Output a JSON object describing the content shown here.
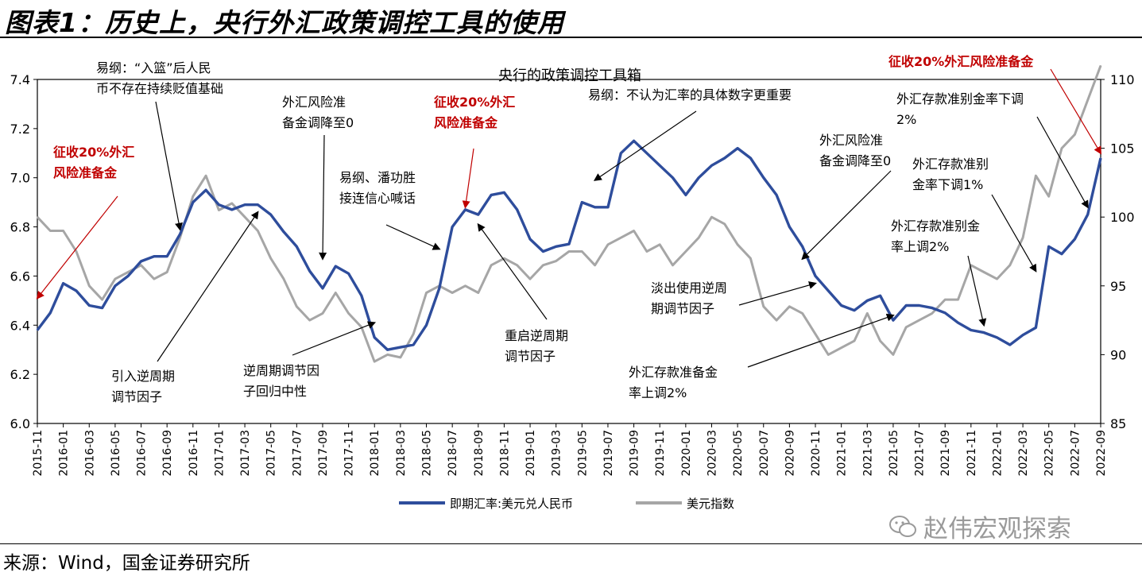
{
  "page": {
    "title": "图表1：历史上，央行外汇政策调控工具的使用",
    "source": "来源：Wind，国金证券研究所",
    "watermark": "赵伟宏观探索"
  },
  "chart_data": {
    "type": "line",
    "title": "央行的政策调控工具箱",
    "x_start": "2015-11",
    "x_end": "2022-09",
    "x_tick_labels": [
      "2015-11",
      "2016-01",
      "2016-03",
      "2016-05",
      "2016-07",
      "2016-09",
      "2016-11",
      "2017-01",
      "2017-03",
      "2017-05",
      "2017-07",
      "2017-09",
      "2017-11",
      "2018-01",
      "2018-03",
      "2018-05",
      "2018-07",
      "2018-09",
      "2018-11",
      "2019-01",
      "2019-03",
      "2019-05",
      "2019-07",
      "2019-09",
      "2019-11",
      "2020-01",
      "2020-03",
      "2020-05",
      "2020-07",
      "2020-09",
      "2020-11",
      "2021-01",
      "2021-03",
      "2021-05",
      "2021-07",
      "2021-09",
      "2021-11",
      "2022-01",
      "2022-03",
      "2022-05",
      "2022-07",
      "2022-09"
    ],
    "y_left": {
      "range": [
        6.0,
        7.4
      ],
      "ticks": [
        "6.0",
        "6.2",
        "6.4",
        "6.6",
        "6.8",
        "7.0",
        "7.2",
        "7.4"
      ]
    },
    "y_right": {
      "range": [
        85,
        110
      ],
      "ticks": [
        "85",
        "90",
        "95",
        "100",
        "105",
        "110"
      ]
    },
    "legend_position": "bottom",
    "colors": {
      "usdcny": "#2e4d9c",
      "dxy": "#a6a6a6",
      "highlight": "#c00000"
    },
    "series": [
      {
        "name": "即期汇率:美元兑人民币",
        "axis": "left",
        "x": [
          "2015-11",
          "2015-12",
          "2016-01",
          "2016-02",
          "2016-03",
          "2016-04",
          "2016-05",
          "2016-06",
          "2016-07",
          "2016-08",
          "2016-09",
          "2016-10",
          "2016-11",
          "2016-12",
          "2017-01",
          "2017-02",
          "2017-03",
          "2017-04",
          "2017-05",
          "2017-06",
          "2017-07",
          "2017-08",
          "2017-09",
          "2017-10",
          "2017-11",
          "2017-12",
          "2018-01",
          "2018-02",
          "2018-03",
          "2018-04",
          "2018-05",
          "2018-06",
          "2018-07",
          "2018-08",
          "2018-09",
          "2018-10",
          "2018-11",
          "2018-12",
          "2019-01",
          "2019-02",
          "2019-03",
          "2019-04",
          "2019-05",
          "2019-06",
          "2019-07",
          "2019-08",
          "2019-09",
          "2019-10",
          "2019-11",
          "2019-12",
          "2020-01",
          "2020-02",
          "2020-03",
          "2020-04",
          "2020-05",
          "2020-06",
          "2020-07",
          "2020-08",
          "2020-09",
          "2020-10",
          "2020-11",
          "2020-12",
          "2021-01",
          "2021-02",
          "2021-03",
          "2021-04",
          "2021-05",
          "2021-06",
          "2021-07",
          "2021-08",
          "2021-09",
          "2021-10",
          "2021-11",
          "2021-12",
          "2022-01",
          "2022-02",
          "2022-03",
          "2022-04",
          "2022-05",
          "2022-06",
          "2022-07",
          "2022-08",
          "2022-09"
        ],
        "values": [
          6.38,
          6.45,
          6.57,
          6.54,
          6.48,
          6.47,
          6.56,
          6.6,
          6.66,
          6.68,
          6.68,
          6.77,
          6.9,
          6.95,
          6.89,
          6.87,
          6.89,
          6.89,
          6.85,
          6.78,
          6.72,
          6.62,
          6.55,
          6.64,
          6.61,
          6.52,
          6.35,
          6.3,
          6.31,
          6.32,
          6.4,
          6.55,
          6.8,
          6.87,
          6.85,
          6.93,
          6.94,
          6.87,
          6.75,
          6.7,
          6.72,
          6.73,
          6.9,
          6.88,
          6.88,
          7.1,
          7.15,
          7.1,
          7.05,
          7.0,
          6.93,
          7.0,
          7.05,
          7.08,
          7.12,
          7.08,
          7.0,
          6.93,
          6.8,
          6.72,
          6.6,
          6.54,
          6.48,
          6.46,
          6.5,
          6.52,
          6.42,
          6.48,
          6.48,
          6.47,
          6.45,
          6.41,
          6.38,
          6.37,
          6.35,
          6.32,
          6.36,
          6.39,
          6.72,
          6.69,
          6.75,
          6.85,
          7.08
        ]
      },
      {
        "name": "美元指数",
        "axis": "right",
        "x": [
          "2015-11",
          "2015-12",
          "2016-01",
          "2016-02",
          "2016-03",
          "2016-04",
          "2016-05",
          "2016-06",
          "2016-07",
          "2016-08",
          "2016-09",
          "2016-10",
          "2016-11",
          "2016-12",
          "2017-01",
          "2017-02",
          "2017-03",
          "2017-04",
          "2017-05",
          "2017-06",
          "2017-07",
          "2017-08",
          "2017-09",
          "2017-10",
          "2017-11",
          "2017-12",
          "2018-01",
          "2018-02",
          "2018-03",
          "2018-04",
          "2018-05",
          "2018-06",
          "2018-07",
          "2018-08",
          "2018-09",
          "2018-10",
          "2018-11",
          "2018-12",
          "2019-01",
          "2019-02",
          "2019-03",
          "2019-04",
          "2019-05",
          "2019-06",
          "2019-07",
          "2019-08",
          "2019-09",
          "2019-10",
          "2019-11",
          "2019-12",
          "2020-01",
          "2020-02",
          "2020-03",
          "2020-04",
          "2020-05",
          "2020-06",
          "2020-07",
          "2020-08",
          "2020-09",
          "2020-10",
          "2020-11",
          "2020-12",
          "2021-01",
          "2021-02",
          "2021-03",
          "2021-04",
          "2021-05",
          "2021-06",
          "2021-07",
          "2021-08",
          "2021-09",
          "2021-10",
          "2021-11",
          "2021-12",
          "2022-01",
          "2022-02",
          "2022-03",
          "2022-04",
          "2022-05",
          "2022-06",
          "2022-07",
          "2022-08",
          "2022-09"
        ],
        "values": [
          100.0,
          99.0,
          99.0,
          97.5,
          95.0,
          94.0,
          95.5,
          96.0,
          96.5,
          95.5,
          96.0,
          98.5,
          101.5,
          103.0,
          100.5,
          101.0,
          100.0,
          99.0,
          97.0,
          95.5,
          93.5,
          92.5,
          93.0,
          94.5,
          93.0,
          92.0,
          89.5,
          90.0,
          89.8,
          91.5,
          94.5,
          95.0,
          94.5,
          95.0,
          94.5,
          96.5,
          97.0,
          96.5,
          95.5,
          96.5,
          96.8,
          97.5,
          97.5,
          96.5,
          98.0,
          98.5,
          99.0,
          97.5,
          98.0,
          96.5,
          97.5,
          98.5,
          100.0,
          99.5,
          98.0,
          97.0,
          93.5,
          92.5,
          93.5,
          93.0,
          91.5,
          90.0,
          90.5,
          91.0,
          93.0,
          91.0,
          90.0,
          92.0,
          92.5,
          93.0,
          94.0,
          94.0,
          96.5,
          96.0,
          95.5,
          96.5,
          98.5,
          103.0,
          101.5,
          105.0,
          106.0,
          108.5,
          111.0
        ]
      }
    ],
    "annotations": [
      {
        "lines": [
          "征收20%外汇",
          "风险准备金"
        ],
        "x": "2015-11",
        "y": 6.51,
        "axis": "left",
        "highlight": true
      },
      {
        "lines": [
          "易纲：“入篮”后人民",
          "币不存在持续贬值基础"
        ],
        "x": "2016-10",
        "y": 6.79,
        "axis": "left",
        "highlight": false
      },
      {
        "lines": [
          "引入逆周期",
          "调节因子"
        ],
        "x": "2017-04",
        "y": 6.86,
        "axis": "left",
        "highlight": false
      },
      {
        "lines": [
          "外汇风险准",
          "备金调降至0"
        ],
        "x": "2017-09",
        "y": 6.67,
        "axis": "left",
        "highlight": false
      },
      {
        "lines": [
          "易纲、潘功胜",
          "接连信心喊话"
        ],
        "x": "2018-06",
        "y": 6.71,
        "axis": "left",
        "highlight": false
      },
      {
        "lines": [
          "逆周期调节因",
          "子回归中性"
        ],
        "x": "2018-01",
        "y": 6.41,
        "axis": "left",
        "highlight": false
      },
      {
        "lines": [
          "征收20%外汇",
          "风险准备金"
        ],
        "x": "2018-08",
        "y": 6.88,
        "axis": "left",
        "highlight": true
      },
      {
        "lines": [
          "重启逆周期",
          "调节因子"
        ],
        "x": "2018-09",
        "y": 6.81,
        "axis": "left",
        "highlight": false
      },
      {
        "lines": [
          "易纲：不认为汇率的具体数字更重要"
        ],
        "x": "2019-06",
        "y": 6.99,
        "axis": "left",
        "highlight": false
      },
      {
        "lines": [
          "外汇风险准",
          "备金调降至0"
        ],
        "x": "2020-10",
        "y": 6.67,
        "axis": "left",
        "highlight": false
      },
      {
        "lines": [
          "淡出使用逆周",
          "期调节因子"
        ],
        "x": "2020-11",
        "y": 6.57,
        "axis": "left",
        "highlight": false
      },
      {
        "lines": [
          "外汇存款准备金",
          "率上调2%"
        ],
        "x": "2021-05",
        "y": 6.44,
        "axis": "left",
        "highlight": false
      },
      {
        "lines": [
          "外汇存款准别金",
          "率上调2%"
        ],
        "x": "2021-12",
        "y": 6.4,
        "axis": "left",
        "highlight": false
      },
      {
        "lines": [
          "外汇存款准别",
          "金率下调1%"
        ],
        "x": "2022-04",
        "y": 6.62,
        "axis": "left",
        "highlight": false
      },
      {
        "lines": [
          "外汇存款准别金率下调",
          "2%"
        ],
        "x": "2022-08",
        "y": 6.88,
        "axis": "left",
        "highlight": false
      },
      {
        "lines": [
          "征收20%外汇风险准备金"
        ],
        "x": "2022-09",
        "y": 7.1,
        "axis": "left",
        "highlight": true
      }
    ]
  }
}
